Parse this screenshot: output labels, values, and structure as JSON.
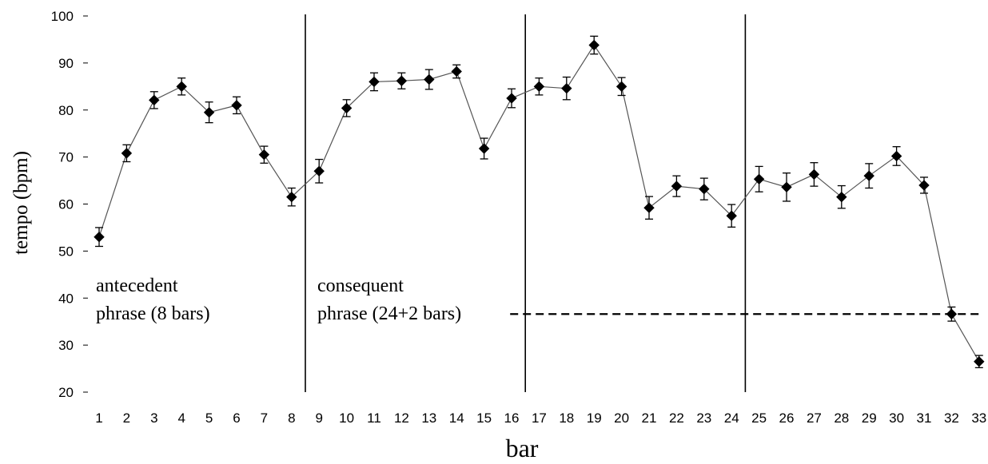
{
  "chart_data": {
    "type": "line",
    "title": "",
    "xlabel": "bar",
    "ylabel": "tempo (bpm)",
    "ylim": [
      20,
      100
    ],
    "yticks": [
      20,
      30,
      40,
      50,
      60,
      70,
      80,
      90,
      100
    ],
    "x": [
      1,
      2,
      3,
      4,
      5,
      6,
      7,
      8,
      9,
      10,
      11,
      12,
      13,
      14,
      15,
      16,
      17,
      18,
      19,
      20,
      21,
      22,
      23,
      24,
      25,
      26,
      27,
      28,
      29,
      30,
      31,
      32,
      33
    ],
    "values": [
      53,
      70.8,
      82.1,
      85,
      79.5,
      81,
      70.5,
      61.5,
      67,
      80.4,
      86,
      86.2,
      86.5,
      88.2,
      71.8,
      82.5,
      85,
      84.6,
      93.8,
      85,
      59.2,
      63.8,
      63.2,
      57.5,
      65.3,
      63.6,
      66.3,
      61.5,
      66,
      70.2,
      64,
      36.6,
      26.5
    ],
    "errors": [
      2,
      1.8,
      1.8,
      1.8,
      2.2,
      1.8,
      1.8,
      1.9,
      2.5,
      1.8,
      1.9,
      1.7,
      2.1,
      1.4,
      2.2,
      2,
      1.8,
      2.4,
      1.9,
      1.9,
      2.4,
      2.2,
      2.3,
      2.4,
      2.7,
      3,
      2.5,
      2.4,
      2.6,
      2,
      1.7,
      1.5,
      1.3
    ],
    "marker": "diamond",
    "color": "#000000",
    "phase_dividers_after_bars": [
      8,
      16,
      24
    ],
    "reference_line": {
      "y": 36.6,
      "from_bar": 16,
      "to_bar": 33,
      "style": "dashed"
    },
    "annotations": [
      {
        "id": "antecedent",
        "lines": [
          "antecedent",
          "phrase (8 bars)"
        ]
      },
      {
        "id": "consequent",
        "lines": [
          "consequent",
          "phrase (24+2 bars)"
        ]
      }
    ],
    "grid": false,
    "legend": "none"
  }
}
